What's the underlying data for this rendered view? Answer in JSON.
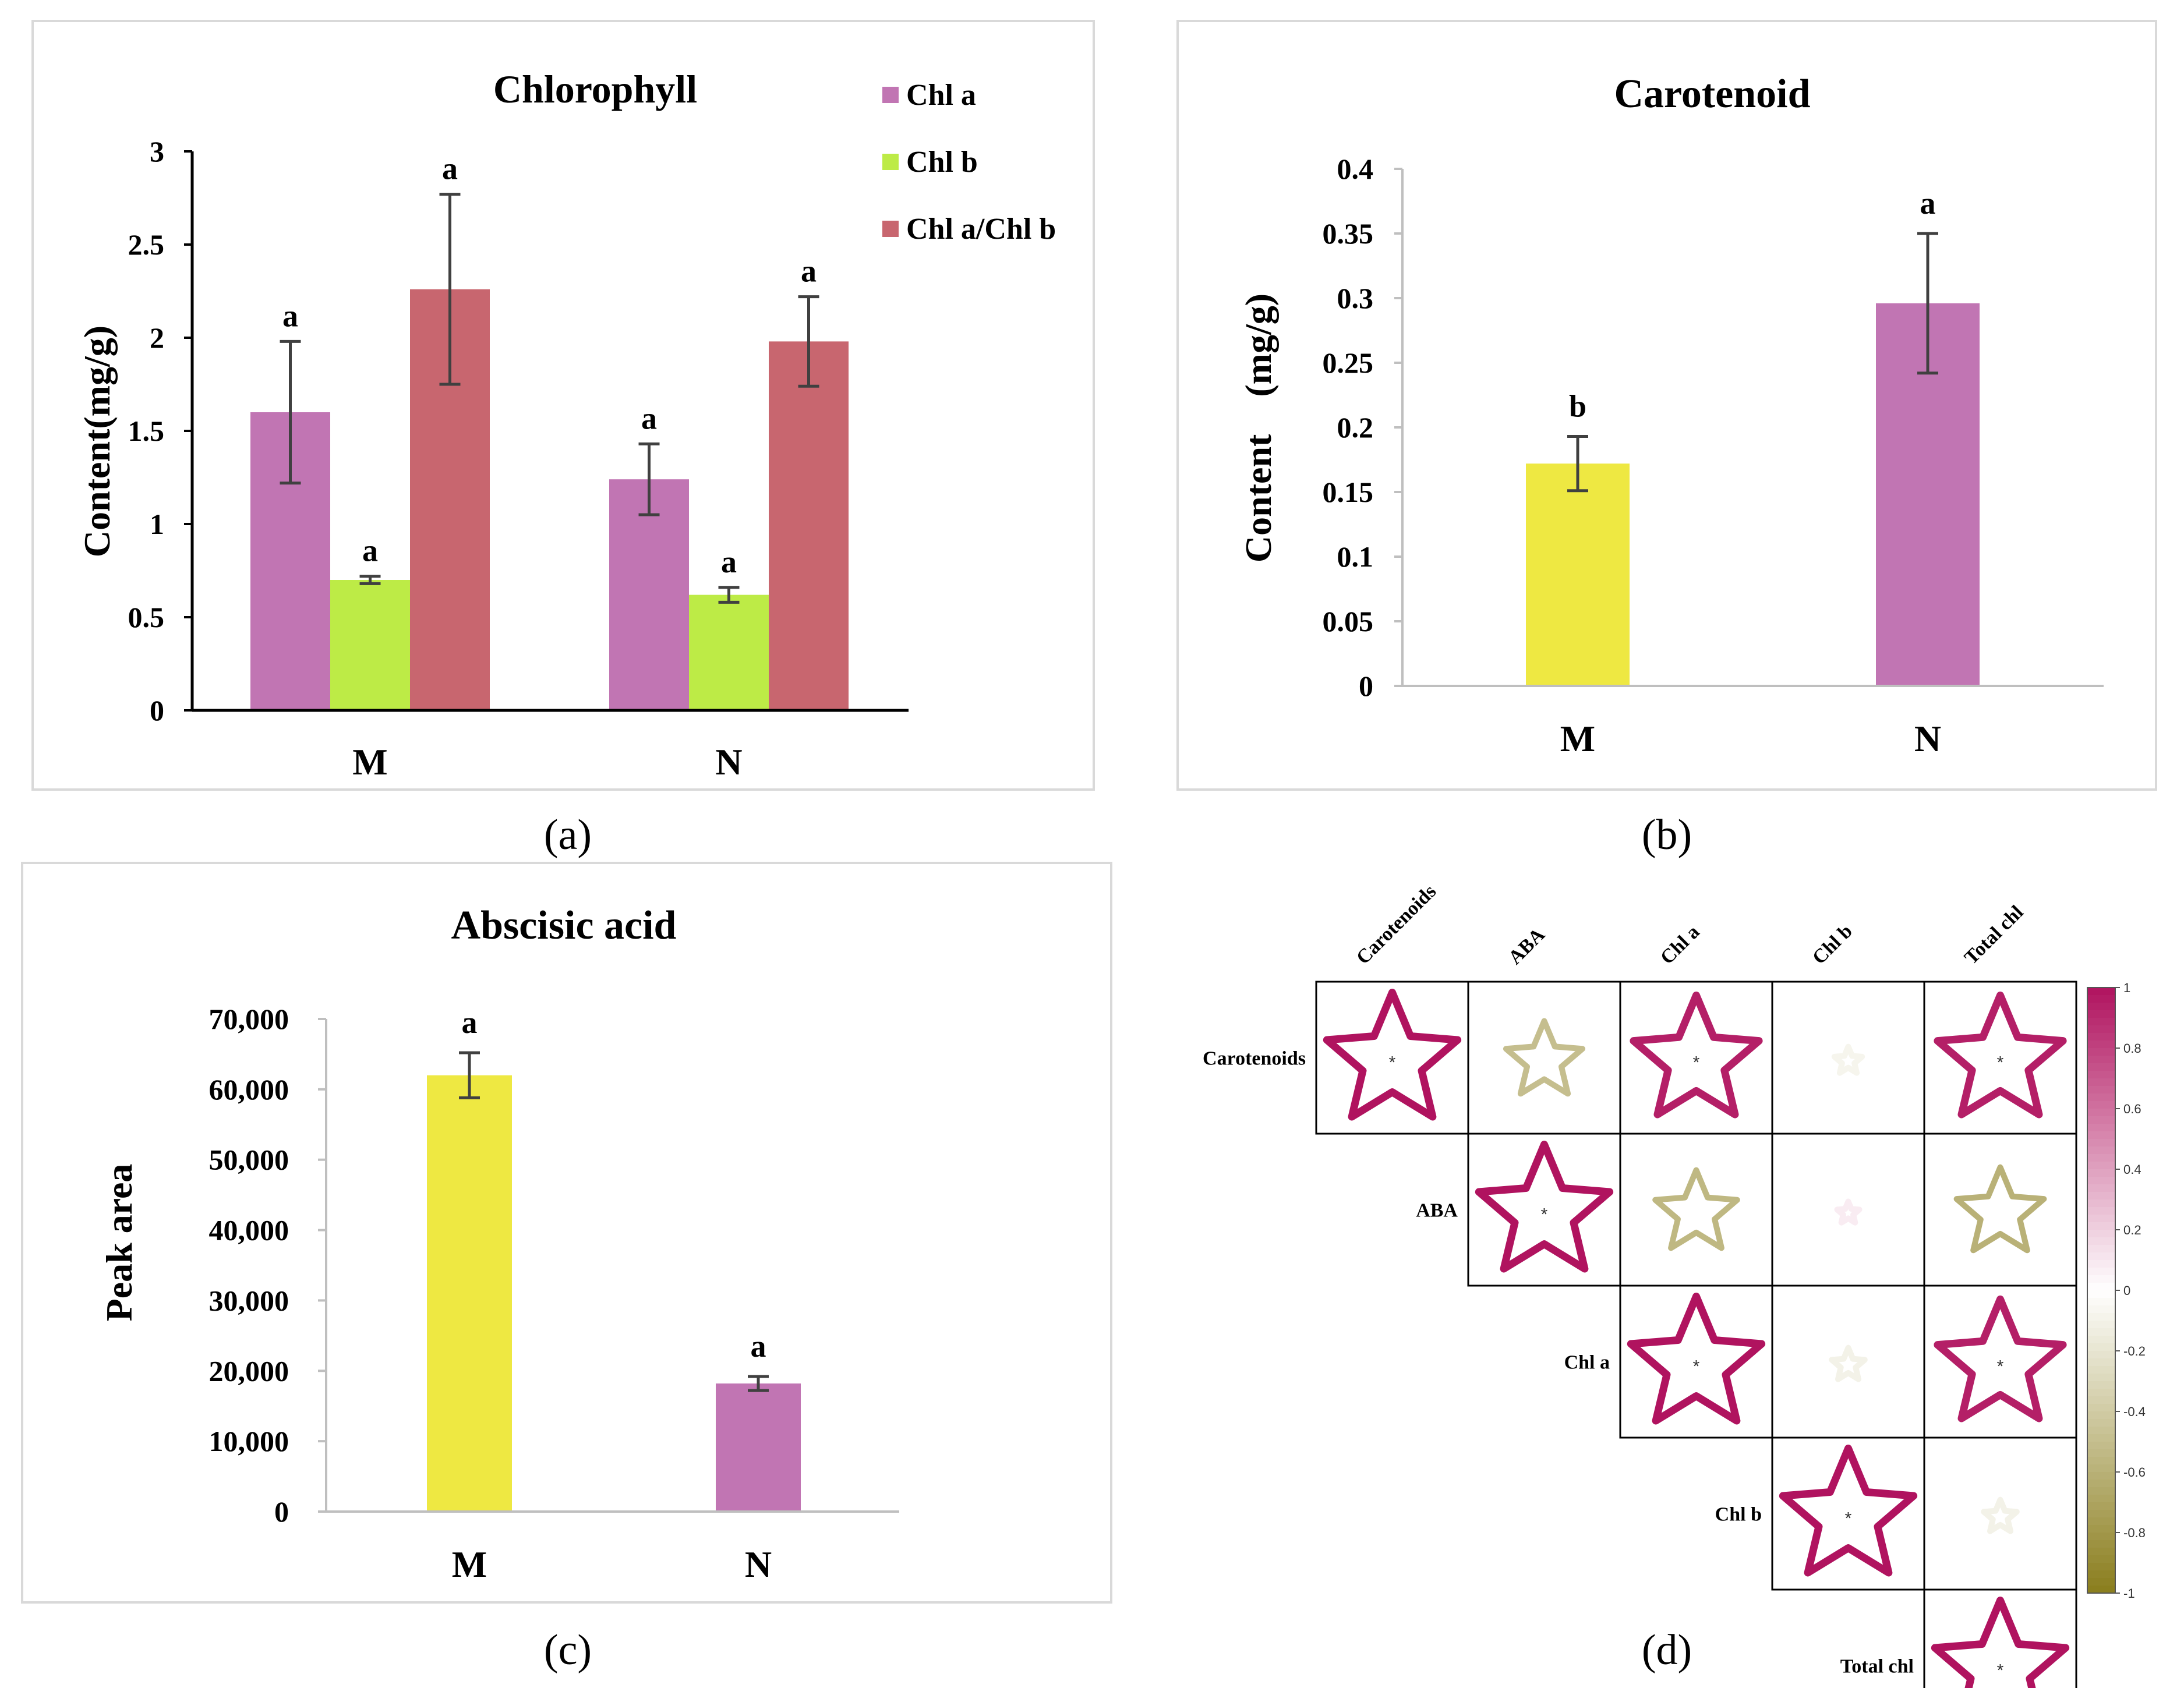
{
  "panels": {
    "a": {
      "caption": "(a)",
      "chart_data": {
        "type": "bar",
        "title": "Chlorophyll",
        "ylabel": "Content(mg/g)",
        "xlabel": "",
        "ylim": [
          0,
          3
        ],
        "yticks": [
          "0",
          "0.5",
          "1",
          "1.5",
          "2",
          "2.5",
          "3"
        ],
        "categories": [
          "M",
          "N"
        ],
        "series": [
          {
            "name": "Chl a",
            "color": "#c175b3",
            "values": [
              1.6,
              1.24
            ],
            "errors": [
              0.38,
              0.19
            ],
            "letters": [
              "a",
              "a"
            ]
          },
          {
            "name": "Chl b",
            "color": "#bdeb46",
            "values": [
              0.7,
              0.62
            ],
            "errors": [
              0.02,
              0.04
            ],
            "letters": [
              "a",
              "a"
            ]
          },
          {
            "name": "Chl a/Chl b",
            "color": "#c8666f",
            "values": [
              2.26,
              1.98
            ],
            "errors": [
              0.51,
              0.24
            ],
            "letters": [
              "a",
              "a"
            ]
          }
        ]
      }
    },
    "b": {
      "caption": "(b)",
      "chart_data": {
        "type": "bar",
        "title": "Carotenoid",
        "ylabel": "Content　(mg/g)",
        "xlabel": "",
        "ylim": [
          0,
          0.4
        ],
        "yticks": [
          "0",
          "0.05",
          "0.1",
          "0.15",
          "0.2",
          "0.25",
          "0.3",
          "0.35",
          "0.4"
        ],
        "categories": [
          "M",
          "N"
        ],
        "values": [
          0.172,
          0.296
        ],
        "errors": [
          0.021,
          0.054
        ],
        "colors": [
          "#eee842",
          "#c175b3"
        ],
        "letters": [
          "b",
          "a"
        ]
      }
    },
    "c": {
      "caption": "(c)",
      "chart_data": {
        "type": "bar",
        "title": "Abscisic acid",
        "ylabel": "Peak area",
        "xlabel": "",
        "ylim": [
          0,
          70000
        ],
        "yticks": [
          "0",
          "10,000",
          "20,000",
          "30,000",
          "40,000",
          "50,000",
          "60,000",
          "70,000"
        ],
        "categories": [
          "M",
          "N"
        ],
        "values": [
          62000,
          18200
        ],
        "errors": [
          3200,
          1000
        ],
        "colors": [
          "#eee842",
          "#c175b3"
        ],
        "letters": [
          "a",
          "a"
        ]
      }
    },
    "d": {
      "caption": "(d)",
      "chart_data": {
        "type": "heatmap",
        "labels": [
          "Carotenoids",
          "ABA",
          "Chl a",
          "Chl b",
          "Total chl"
        ],
        "matrix": [
          [
            1.0,
            -0.5,
            0.95,
            -0.05,
            0.95
          ],
          [
            -0.5,
            1.0,
            -0.55,
            0.0,
            -0.6
          ],
          [
            0.95,
            -0.55,
            1.0,
            -0.1,
            0.95
          ],
          [
            -0.05,
            0.0,
            -0.1,
            1.0,
            -0.1
          ],
          [
            0.95,
            -0.6,
            0.95,
            -0.1,
            1.0
          ]
        ],
        "significance_marker": "*",
        "significant": [
          [
            true,
            false,
            true,
            false,
            true
          ],
          [
            false,
            true,
            false,
            false,
            false
          ],
          [
            true,
            false,
            true,
            false,
            true
          ],
          [
            false,
            false,
            false,
            true,
            false
          ],
          [
            true,
            false,
            true,
            false,
            true
          ]
        ],
        "colorbar": {
          "range": [
            -1,
            1
          ],
          "ticks": [
            "1",
            "0.8",
            "0.6",
            "0.4",
            "0.2",
            "0",
            "-0.2",
            "-0.4",
            "-0.6",
            "-0.8",
            "-1"
          ],
          "positive_color": "#b0135f",
          "negative_color": "#8a7d1c"
        }
      }
    }
  }
}
